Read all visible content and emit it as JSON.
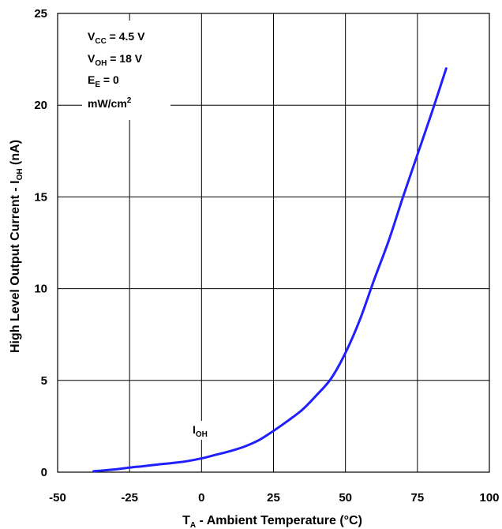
{
  "chart_data": {
    "type": "line",
    "xlim": [
      -50,
      100
    ],
    "ylim": [
      0,
      25
    ],
    "x_ticks": [
      -50,
      -25,
      0,
      25,
      50,
      75,
      100
    ],
    "y_ticks": [
      0,
      5,
      10,
      15,
      20,
      25
    ],
    "grid": true,
    "line_color": "#1f1fff",
    "xlabel": {
      "main": "T",
      "sub": "A",
      "rest": " - Ambient Temperature (°C)"
    },
    "ylabel": {
      "main": "High Level Output Current - I",
      "sub": "OH",
      "rest": " (nA)"
    },
    "conditions": [
      {
        "main": "V",
        "sub": "CC",
        "rest": " = 4.5 V"
      },
      {
        "main": "V",
        "sub": "OH",
        "rest": " = 18 V"
      },
      {
        "main": "E",
        "sub": "E",
        "rest": " = 0"
      },
      {
        "main": "mW/cm",
        "sup": "2"
      }
    ],
    "series": [
      {
        "label": {
          "main": "I",
          "sub": "OH"
        },
        "x": [
          -37.5,
          -30,
          -25,
          -20,
          -15,
          -10,
          -5,
          0,
          5,
          10,
          15,
          20,
          25,
          30,
          35,
          40,
          45,
          50,
          55,
          60,
          65,
          70,
          75,
          80,
          85
        ],
        "y": [
          0.05,
          0.15,
          0.25,
          0.33,
          0.42,
          0.5,
          0.6,
          0.75,
          0.95,
          1.15,
          1.4,
          1.75,
          2.25,
          2.8,
          3.4,
          4.2,
          5.1,
          6.5,
          8.3,
          10.5,
          12.6,
          15.0,
          17.3,
          19.6,
          22.0
        ]
      }
    ]
  }
}
